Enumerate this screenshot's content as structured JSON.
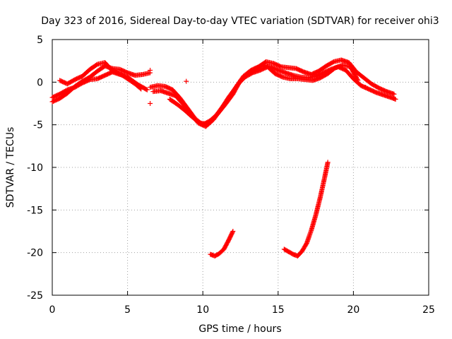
{
  "chart_data": {
    "type": "scatter",
    "title": "Day 323 of 2016, Sidereal Day-to-day VTEC variation (SDTVAR) for receiver ohi3",
    "xlabel": "GPS time / hours",
    "ylabel": "SDTVAR / TECUs",
    "xlim": [
      0,
      25
    ],
    "ylim": [
      -25,
      5
    ],
    "x_ticks": [
      0,
      5,
      10,
      15,
      20,
      25
    ],
    "y_ticks": [
      -25,
      -20,
      -15,
      -10,
      -5,
      0,
      5
    ],
    "grid": true,
    "marker": "+",
    "series": [
      {
        "name": "SDTVAR",
        "color": "#ff0000",
        "segments": [
          {
            "x": [
              0,
              0.5,
              1,
              1.5,
              2,
              2.5,
              3,
              3.5,
              4,
              4.5,
              5,
              5.3,
              5.7,
              6,
              6.3
            ],
            "y": [
              -1.8,
              -1.4,
              -0.9,
              -0.6,
              -0.1,
              0.3,
              0.4,
              0.8,
              1.2,
              0.9,
              0.6,
              0.2,
              -0.3,
              -0.6,
              -0.9
            ]
          },
          {
            "x": [
              0,
              0.5,
              1,
              1.5,
              2,
              2.5,
              3,
              3.5,
              4,
              4.5,
              5,
              5.5,
              6,
              6.5
            ],
            "y": [
              -2.3,
              -1.9,
              -1.3,
              -0.5,
              0.1,
              0.6,
              1.3,
              1.9,
              1.6,
              1.5,
              1.1,
              0.8,
              0.9,
              1.1
            ]
          },
          {
            "x": [
              0.5,
              1,
              1.5,
              2,
              2.5,
              3,
              3.5,
              4,
              4.5,
              5,
              5.5,
              5.9
            ],
            "y": [
              0.2,
              -0.2,
              0.3,
              0.7,
              1.5,
              2.1,
              2.3,
              1.3,
              1.0,
              0.4,
              -0.2,
              -0.8
            ]
          },
          {
            "x": [
              6.5,
              7,
              7.5,
              8,
              8.5,
              9,
              9.5,
              10,
              10.5,
              11,
              11.5,
              12,
              12.5,
              13,
              13.5,
              14,
              14.5,
              15,
              15.5,
              16,
              16.5,
              17,
              17.5,
              18,
              18.5,
              19,
              19.5,
              20,
              20.5,
              21,
              21.5,
              22,
              22.5,
              22.8
            ],
            "y": [
              -0.6,
              -0.4,
              -0.5,
              -0.9,
              -1.9,
              -3.1,
              -4.3,
              -5.0,
              -4.5,
              -3.7,
              -2.6,
              -1.4,
              0.2,
              1.0,
              1.6,
              2.0,
              1.8,
              1.4,
              1.1,
              0.8,
              0.6,
              0.5,
              0.7,
              1.1,
              1.5,
              1.8,
              1.4,
              0.4,
              -0.4,
              -0.8,
              -1.2,
              -1.5,
              -1.8,
              -2.0
            ]
          },
          {
            "x": [
              6.7,
              7.2,
              7.7,
              8.2,
              8.7,
              9.2,
              9.7,
              10.2,
              10.7,
              11.2,
              11.7,
              12.2,
              12.7,
              13.2,
              13.7,
              14.2,
              14.7,
              15.2,
              15.7,
              16.2,
              16.7,
              17.2,
              17.7,
              18.2,
              18.7,
              19.2,
              19.7,
              20.2,
              20.7,
              21.2,
              21.7,
              22.2,
              22.7
            ],
            "y": [
              -1.1,
              -1.0,
              -1.3,
              -1.6,
              -2.6,
              -3.7,
              -4.8,
              -5.2,
              -4.4,
              -3.2,
              -1.8,
              -0.6,
              0.7,
              1.4,
              1.8,
              2.4,
              2.2,
              1.8,
              1.7,
              1.6,
              1.2,
              0.9,
              1.3,
              1.9,
              2.4,
              2.6,
              2.3,
              1.2,
              0.5,
              -0.2,
              -0.7,
              -1.1,
              -1.4
            ]
          },
          {
            "x": [
              7.8,
              8.3,
              8.8,
              9.3,
              9.8,
              10.3,
              10.8,
              11.3,
              11.8,
              12.3,
              12.8,
              13.3,
              13.8,
              14.3,
              14.8,
              15.3,
              15.8,
              16.3,
              16.8,
              17.3,
              17.8,
              18.3,
              18.8,
              19.3,
              19.8,
              20.3
            ],
            "y": [
              -2.0,
              -2.6,
              -3.3,
              -4.1,
              -4.8,
              -4.9,
              -4.1,
              -2.9,
              -1.7,
              -0.3,
              0.6,
              1.1,
              1.4,
              1.8,
              1.0,
              0.6,
              0.4,
              0.4,
              0.3,
              0.2,
              0.5,
              1.0,
              1.7,
              2.0,
              1.8,
              0.2
            ]
          },
          {
            "x": [
              10.5,
              10.8,
              11.1,
              11.4,
              11.7,
              12.0
            ],
            "y": [
              -20.2,
              -20.4,
              -20.1,
              -19.6,
              -18.6,
              -17.5
            ]
          },
          {
            "x": [
              15.4,
              15.7,
              16.0,
              16.3,
              16.6,
              16.9,
              17.2,
              17.5,
              17.8,
              18.1,
              18.3
            ],
            "y": [
              -19.6,
              -19.9,
              -20.2,
              -20.4,
              -19.8,
              -18.9,
              -17.4,
              -15.6,
              -13.5,
              -11.1,
              -9.4
            ]
          }
        ],
        "points": [
          {
            "x": 6.5,
            "y": -2.5
          },
          {
            "x": 6.5,
            "y": 1.4
          },
          {
            "x": 8.9,
            "y": 0.1
          },
          {
            "x": 20.8,
            "y": -0.6
          }
        ]
      }
    ]
  }
}
